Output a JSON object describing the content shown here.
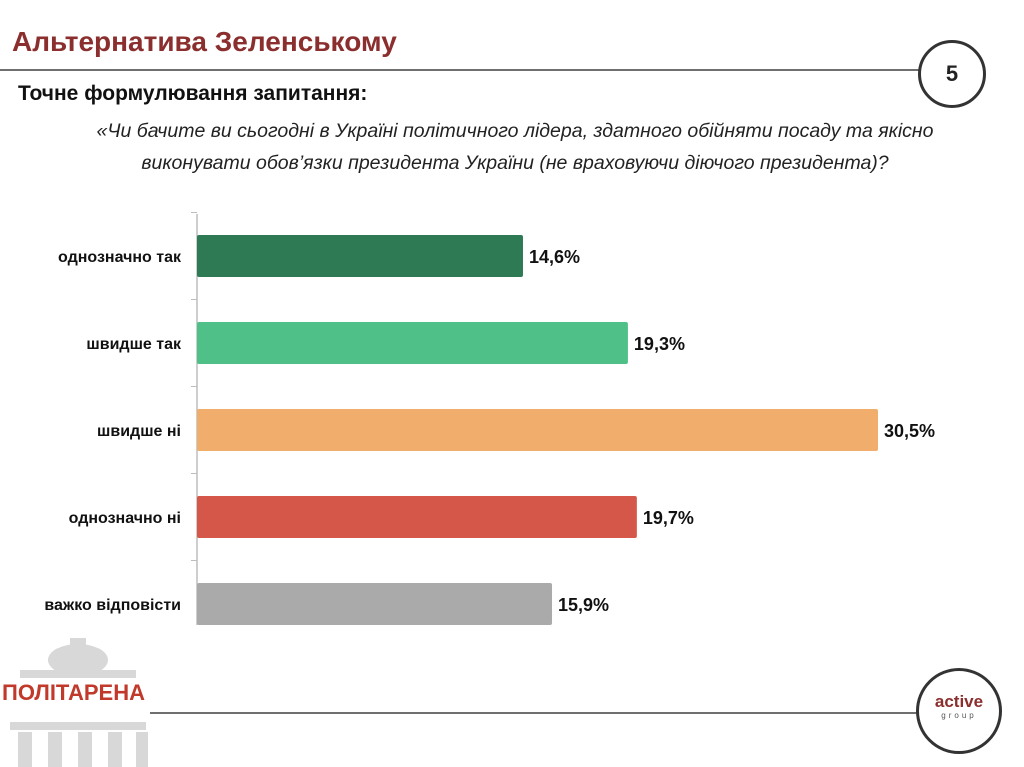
{
  "header": {
    "title": "Альтернатива Зеленському",
    "page_number": "5"
  },
  "question": {
    "heading": "Точне формулювання запитання:",
    "line1": "«Чи бачите ви сьогодні в Україні політичного лідера,  здатного обійняти посаду та якісно",
    "line2": "виконувати обов’язки президента України (не враховуючи діючого президента)?"
  },
  "branding": {
    "left_logo_text": "ПОЛІТАРЕНА",
    "right_logo_text1": "active",
    "right_logo_text2": "group"
  },
  "chart_data": {
    "type": "bar",
    "orientation": "horizontal",
    "categories": [
      "однозначно так",
      "швидше так",
      "швидше ні",
      "однозначно ні",
      "важко відповісти"
    ],
    "values": [
      14.6,
      19.3,
      30.5,
      19.7,
      15.9
    ],
    "value_labels": [
      "14,6%",
      "19,3%",
      "30,5%",
      "19,7%",
      "15,9%"
    ],
    "colors": [
      "#2e7a55",
      "#4fc188",
      "#f0ad6b",
      "#d4574a",
      "#aaaaaa"
    ],
    "xlim": [
      0,
      35
    ],
    "grid": false,
    "legend": "none"
  }
}
